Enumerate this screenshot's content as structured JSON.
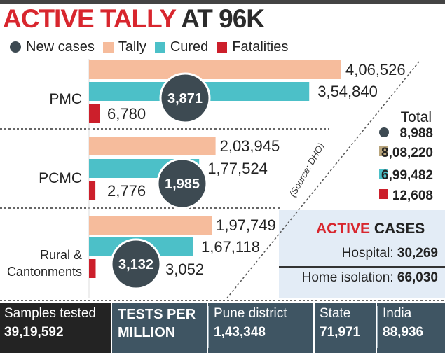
{
  "title": {
    "part1": "ACTIVE TALLY",
    "part2": "AT 96K"
  },
  "legend": [
    {
      "name": "New cases",
      "color": "#3d4a52",
      "shape": "dot"
    },
    {
      "name": "Tally",
      "color": "#f6bc9c",
      "shape": "square"
    },
    {
      "name": "Cured",
      "color": "#4cc0c8",
      "shape": "square"
    },
    {
      "name": "Fatalities",
      "color": "#cc1f2b",
      "shape": "square"
    }
  ],
  "chart_data": {
    "type": "bar",
    "categories": [
      "PMC",
      "PCMC",
      "Rural & Cantonments"
    ],
    "series": [
      {
        "name": "Tally",
        "values": [
          406526,
          203945,
          197749
        ],
        "labels": [
          "4,06,526",
          "2,03,945",
          "1,97,749"
        ]
      },
      {
        "name": "Cured",
        "values": [
          354840,
          177524,
          167118
        ],
        "labels": [
          "3,54,840",
          "1,77,524",
          "1,67,118"
        ]
      },
      {
        "name": "Fatalities",
        "values": [
          6780,
          2776,
          3052
        ],
        "labels": [
          "6,780",
          "2,776",
          "3,052"
        ]
      },
      {
        "name": "New cases",
        "values": [
          3871,
          1985,
          3132
        ],
        "labels": [
          "3,871",
          "1,985",
          "3,132"
        ]
      }
    ],
    "source": "(Source: DHO)"
  },
  "totals": {
    "label": "Total",
    "items": [
      {
        "value": "8,988",
        "color": "#3d4a52",
        "shape": "dot"
      },
      {
        "value": "8,08,220",
        "color": "#b9a57c",
        "shape": "square"
      },
      {
        "value": "6,99,482",
        "color": "#4cc0c8",
        "shape": "square"
      },
      {
        "value": "12,608",
        "color": "#cc1f2b",
        "shape": "square"
      }
    ]
  },
  "active_cases": {
    "title_red": "ACTIVE",
    "title_dark": "CASES",
    "hospital_label": "Hospital:",
    "hospital_value": "30,269",
    "home_label": "Home isolation:",
    "home_value": "66,030"
  },
  "bottom": {
    "samples_label": "Samples tested",
    "samples_value": "39,19,592",
    "tests_label_1": "TESTS PER",
    "tests_label_2": "MILLION",
    "pune_label": "Pune district",
    "pune_value": "1,43,348",
    "state_label": "State",
    "state_value": "71,971",
    "india_label": "India",
    "india_value": "88,936"
  }
}
